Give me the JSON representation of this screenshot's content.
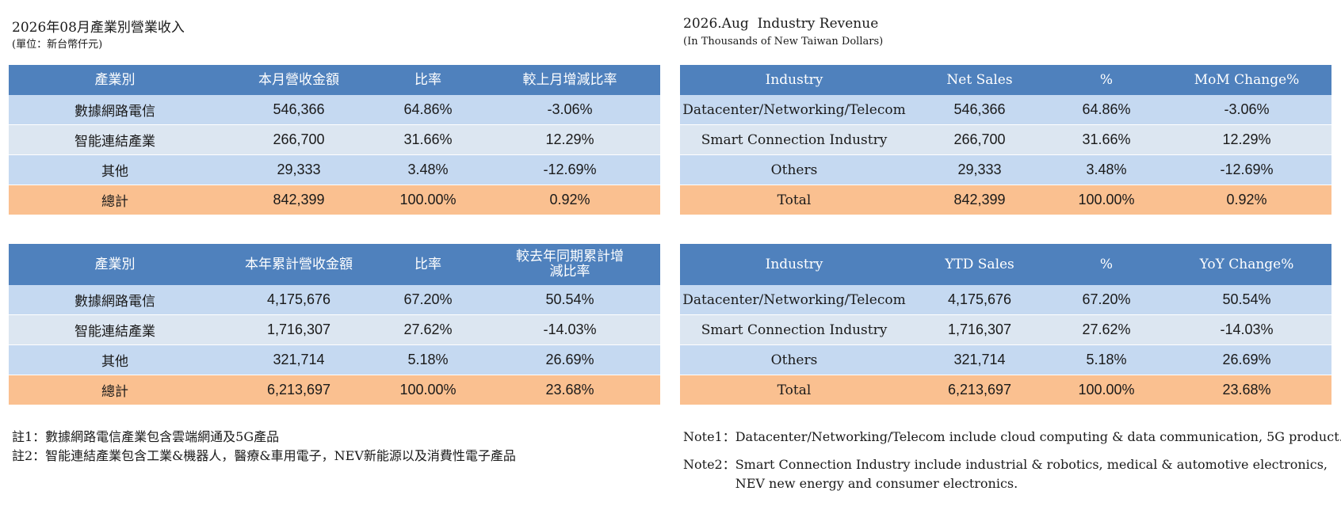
{
  "zh": {
    "title": "2026年08月產業別營業收入",
    "subtitle": "(單位：新台幣仟元)",
    "monthly": {
      "headers": [
        "產業別",
        "本月營收金額",
        "比率",
        "較上月增減比率"
      ],
      "rows": [
        [
          "數據網路電信",
          "546,366",
          "64.86%",
          "-3.06%"
        ],
        [
          "智能連結產業",
          "266,700",
          "31.66%",
          "12.29%"
        ],
        [
          "其他",
          "29,333",
          "3.48%",
          "-12.69%"
        ]
      ],
      "total": [
        "總計",
        "842,399",
        "100.00%",
        "0.92%"
      ]
    },
    "ytd": {
      "headers": [
        "產業別",
        "本年累計營收金額",
        "比率",
        "較去年同期累計增減比率"
      ],
      "rows": [
        [
          "數據網路電信",
          "4,175,676",
          "67.20%",
          "50.54%"
        ],
        [
          "智能連結產業",
          "1,716,307",
          "27.62%",
          "-14.03%"
        ],
        [
          "其他",
          "321,714",
          "5.18%",
          "26.69%"
        ]
      ],
      "total": [
        "總計",
        "6,213,697",
        "100.00%",
        "23.68%"
      ]
    },
    "notes": [
      "註1：數據網路電信產業包含雲端網通及5G產品",
      "註2：智能連結產業包含工業&機器人，醫療&車用電子，NEV新能源以及消費性電子產品"
    ]
  },
  "en": {
    "title": "2026.Aug  Industry Revenue",
    "subtitle": "(In Thousands of New Taiwan Dollars)",
    "monthly": {
      "headers": [
        "Industry",
        "Net Sales",
        "%",
        "MoM Change%"
      ],
      "rows": [
        [
          "Datacenter/Networking/Telecom",
          "546,366",
          "64.86%",
          "-3.06%"
        ],
        [
          "Smart Connection Industry",
          "266,700",
          "31.66%",
          "12.29%"
        ],
        [
          "Others",
          "29,333",
          "3.48%",
          "-12.69%"
        ]
      ],
      "total": [
        "Total",
        "842,399",
        "100.00%",
        "0.92%"
      ]
    },
    "ytd": {
      "headers": [
        "Industry",
        "YTD Sales",
        "%",
        "YoY Change%"
      ],
      "rows": [
        [
          "Datacenter/Networking/Telecom",
          "4,175,676",
          "67.20%",
          "50.54%"
        ],
        [
          "Smart Connection Industry",
          "1,716,307",
          "27.62%",
          "-14.03%"
        ],
        [
          "Others",
          "321,714",
          "5.18%",
          "26.69%"
        ]
      ],
      "total": [
        "Total",
        "6,213,697",
        "100.00%",
        "23.68%"
      ]
    },
    "notes": [
      {
        "label": "Note1：",
        "text": "Datacenter/Networking/Telecom include cloud computing & data communication, 5G product."
      },
      {
        "label": "Note2：",
        "text": "Smart Connection Industry include industrial & robotics, medical & automotive electronics,",
        "text2": "NEV new energy and consumer electronics."
      }
    ]
  },
  "colors": {
    "header_bg": "#4f81bd",
    "row_odd": "#c5d9f1",
    "row_even": "#dce6f1",
    "total_bg": "#fac090"
  }
}
